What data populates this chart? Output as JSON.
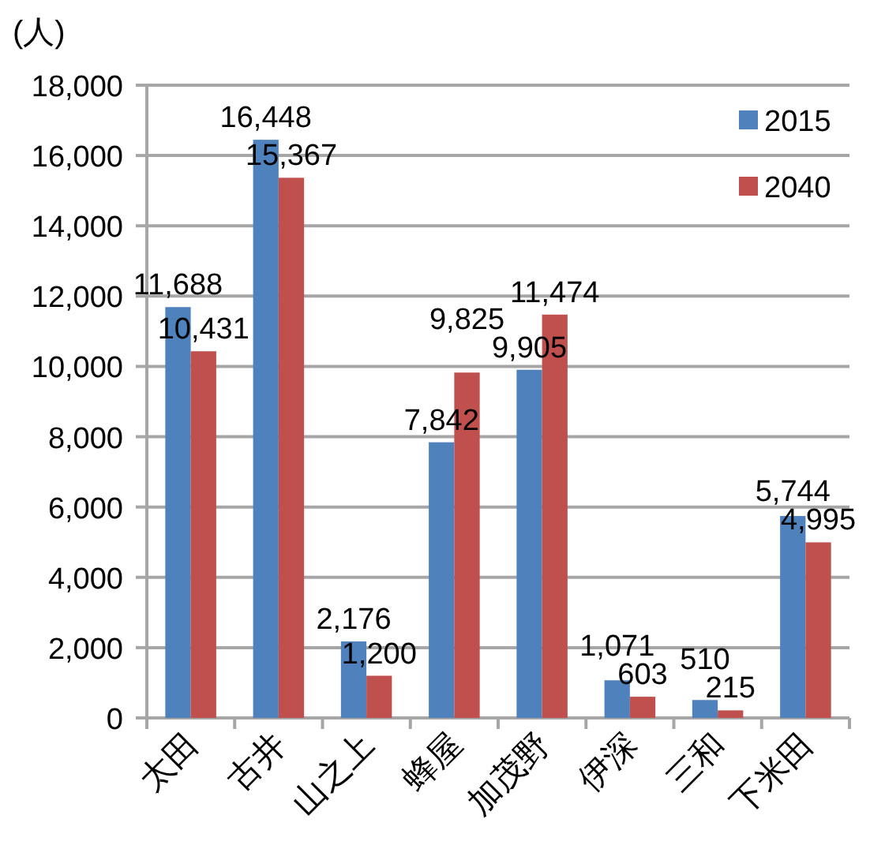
{
  "chart_data": {
    "type": "bar",
    "ylabel": "(人)",
    "categories": [
      "太田",
      "古井",
      "山之上",
      "蜂屋",
      "加茂野",
      "伊深",
      "三和",
      "下米田"
    ],
    "series": [
      {
        "name": "2015",
        "color": "#4f81bd",
        "values": [
          11688,
          16448,
          2176,
          7842,
          9905,
          1071,
          510,
          5744
        ],
        "value_labels": [
          "11,688",
          "16,448",
          "2,176",
          "7,842",
          "9,905",
          "1,071",
          "510",
          "5,744"
        ]
      },
      {
        "name": "2040",
        "color": "#c0504d",
        "values": [
          10431,
          15367,
          1200,
          9825,
          11474,
          603,
          215,
          4995
        ],
        "value_labels": [
          "10,431",
          "15,367",
          "1,200",
          "9,825",
          "11,474",
          "603",
          "215",
          "4,995"
        ]
      }
    ],
    "ylim": [
      0,
      18000
    ],
    "yticks": [
      0,
      {
        "value": 2000,
        "label": "2,000"
      },
      {
        "value": 4000,
        "label": "4,000"
      },
      {
        "value": 6000,
        "label": "6,000"
      },
      {
        "value": 8000,
        "label": "8,000"
      },
      {
        "value": 10000,
        "label": "10,000"
      },
      {
        "value": 12000,
        "label": "12,000"
      },
      {
        "value": 14000,
        "label": "14,000"
      },
      {
        "value": 16000,
        "label": "16,000"
      },
      {
        "value": 18000,
        "label": "18,000"
      }
    ],
    "grid": "y",
    "legend": "top right"
  }
}
